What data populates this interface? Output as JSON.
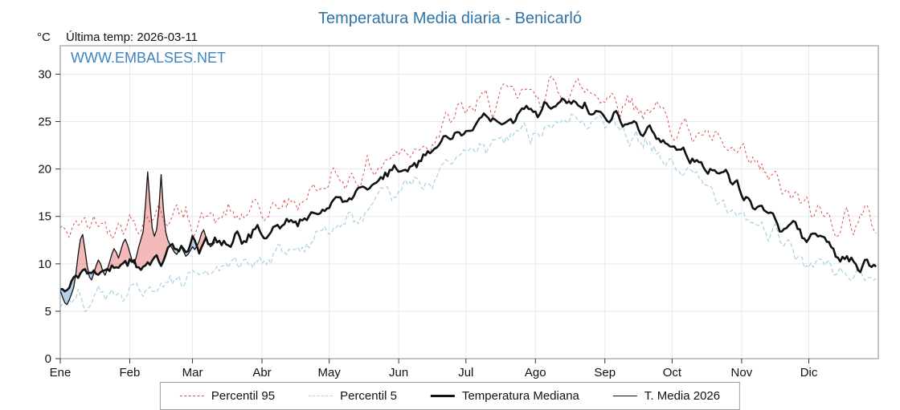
{
  "page": {
    "title": "Temperatura Media diaria - Benicarló"
  },
  "header": {
    "unit": "°C",
    "last_temp": "Última temp: 2026-03-11"
  },
  "watermark": "WWW.EMBALSES.NET",
  "chart_data": {
    "type": "line",
    "title": "Temperatura Media diaria - Benicarló",
    "x_tick_labels": [
      "Ene",
      "Feb",
      "Mar",
      "Abr",
      "May",
      "Jun",
      "Jul",
      "Ago",
      "Sep",
      "Oct",
      "Nov",
      "Dic"
    ],
    "month_start_days": [
      0,
      31,
      59,
      90,
      120,
      151,
      181,
      212,
      243,
      273,
      304,
      334
    ],
    "days_in_year": 365,
    "ylim": [
      0,
      33
    ],
    "yticks": [
      0,
      5,
      10,
      15,
      20,
      25,
      30
    ],
    "grid": true,
    "legend_position": "bottom",
    "axis_color": "#808890",
    "grid_color": "#e4eaf1",
    "control_days": [
      0,
      15,
      30,
      45,
      60,
      75,
      90,
      105,
      120,
      135,
      150,
      165,
      180,
      195,
      210,
      225,
      240,
      255,
      270,
      285,
      300,
      315,
      330,
      345,
      360,
      365
    ],
    "series": [
      {
        "name": "Percentil 95",
        "style": "dashed",
        "dash": "3 3",
        "color": "#dd4b4b",
        "width": 1,
        "noise_amp": 1.4,
        "control_values": [
          13.2,
          14.6,
          14.2,
          15.4,
          14.6,
          14.9,
          15.3,
          16.6,
          18.6,
          19.6,
          21.5,
          23.2,
          26.2,
          27.3,
          27.8,
          28.5,
          28.1,
          27.0,
          25.4,
          23.6,
          21.6,
          19.4,
          16.2,
          14.6,
          14.8,
          13.8
        ]
      },
      {
        "name": "Percentil 5",
        "style": "dashed",
        "dash": "5 3",
        "color": "#a5d2e2",
        "width": 1.2,
        "noise_amp": 1.1,
        "control_values": [
          6.0,
          6.6,
          7.0,
          7.6,
          9.0,
          9.8,
          10.6,
          11.6,
          13.6,
          15.0,
          17.5,
          19.0,
          21.5,
          22.8,
          24.2,
          25.2,
          24.8,
          23.2,
          21.0,
          18.6,
          16.2,
          13.6,
          10.6,
          9.2,
          8.4,
          7.8
        ]
      },
      {
        "name": "Temperatura Mediana",
        "style": "solid",
        "color": "#111111",
        "width": 2.6,
        "noise_amp": 0.8,
        "control_values": [
          8.0,
          9.2,
          10.0,
          10.6,
          12.0,
          12.4,
          13.2,
          14.5,
          16.0,
          17.5,
          20.0,
          21.8,
          24.0,
          25.3,
          26.0,
          26.8,
          25.8,
          24.8,
          22.8,
          20.8,
          18.8,
          14.8,
          13.2,
          11.3,
          9.8,
          9.3
        ]
      },
      {
        "name": "T. Media 2026",
        "style": "solid",
        "color": "#111111",
        "width": 1.3,
        "daily_values": [
          7.2,
          6.5,
          5.9,
          5.7,
          6.2,
          6.8,
          7.5,
          9.0,
          11.0,
          12.6,
          13.1,
          11.5,
          9.8,
          8.6,
          8.3,
          9.0,
          9.8,
          10.4,
          10.0,
          9.2,
          8.8,
          9.4,
          10.2,
          11.0,
          11.6,
          11.2,
          10.6,
          11.4,
          12.2,
          12.6,
          12.0,
          11.2,
          10.4,
          10.0,
          10.8,
          11.8,
          12.6,
          13.4,
          16.2,
          19.7,
          16.4,
          13.8,
          12.9,
          13.6,
          15.8,
          19.4,
          15.8,
          13.4,
          12.5,
          12.0,
          11.6,
          11.2,
          11.0,
          11.4,
          11.8,
          11.3,
          10.8,
          11.0,
          11.4,
          11.8,
          11.5,
          11.9,
          12.4,
          13.2,
          13.6,
          12.8,
          12.2,
          11.8,
          12.0,
          12.3
        ]
      }
    ],
    "fills": {
      "above_median_color": "rgba(228,80,80,0.40)",
      "below_median_color": "rgba(120,170,215,0.55)"
    }
  },
  "legend": {
    "items": [
      {
        "label": "Percentil 95"
      },
      {
        "label": "Percentil 5"
      },
      {
        "label": "Temperatura Mediana"
      },
      {
        "label": "T. Media 2026"
      }
    ]
  }
}
